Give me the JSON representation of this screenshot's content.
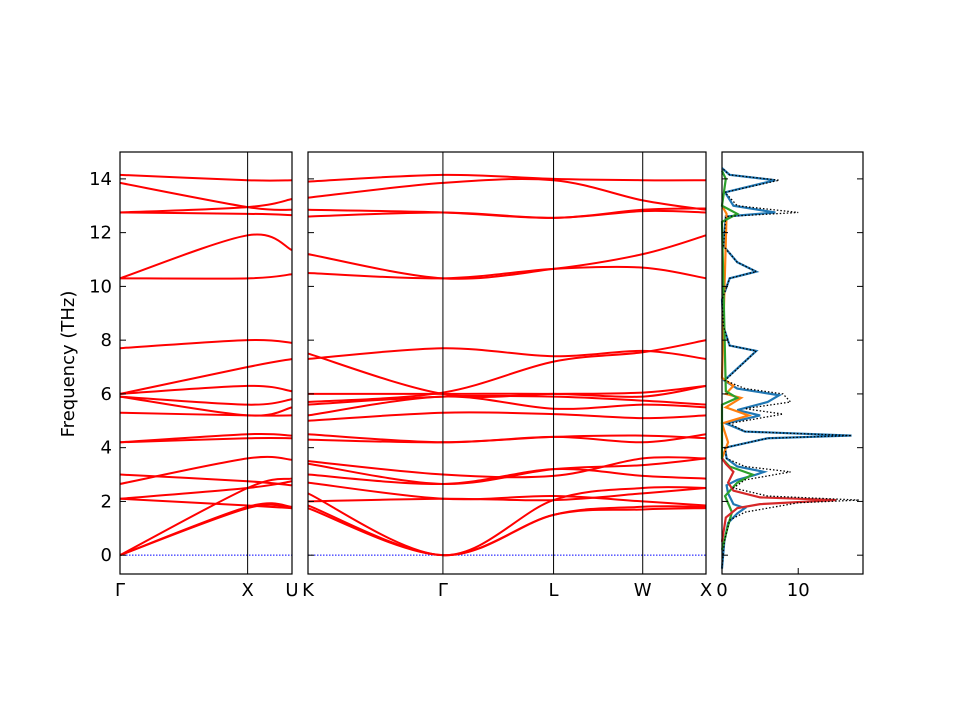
{
  "chart_data": [
    {
      "type": "line",
      "panel": "band-structure-gamma-x-u",
      "ylabel": "Frequency (THz)",
      "ylim": [
        -0.7,
        15.0
      ],
      "yticks": [
        0,
        2,
        4,
        6,
        8,
        10,
        12,
        14
      ],
      "x_ticks": [
        {
          "label": "Γ",
          "pos": 0.0
        },
        {
          "label": "X",
          "pos": 0.742
        },
        {
          "label": "U",
          "pos": 1.0
        }
      ],
      "line_color": "#ff0000",
      "zero_line_color": "#0000ff",
      "series": [
        {
          "x": [
            0,
            0.742,
            1
          ],
          "y": [
            0,
            1.75,
            1.75
          ]
        },
        {
          "x": [
            0,
            0.742,
            1
          ],
          "y": [
            0,
            1.8,
            1.8
          ]
        },
        {
          "x": [
            0,
            0.742,
            1
          ],
          "y": [
            0,
            2.5,
            2.85
          ]
        },
        {
          "x": [
            0,
            0.742,
            1
          ],
          "y": [
            2.1,
            1.85,
            1.75
          ]
        },
        {
          "x": [
            0,
            0.742,
            1
          ],
          "y": [
            2.1,
            2.5,
            2.75
          ]
        },
        {
          "x": [
            0,
            0.742,
            1
          ],
          "y": [
            2.65,
            3.6,
            3.55
          ]
        },
        {
          "x": [
            0,
            0.742,
            1
          ],
          "y": [
            3.0,
            2.75,
            2.6
          ]
        },
        {
          "x": [
            0,
            0.742,
            1
          ],
          "y": [
            4.2,
            4.35,
            4.35
          ]
        },
        {
          "x": [
            0,
            0.742,
            1
          ],
          "y": [
            4.2,
            4.5,
            4.45
          ]
        },
        {
          "x": [
            0,
            0.742,
            1
          ],
          "y": [
            5.3,
            5.2,
            5.2
          ]
        },
        {
          "x": [
            0,
            0.742,
            1
          ],
          "y": [
            5.9,
            5.2,
            5.5
          ]
        },
        {
          "x": [
            0,
            0.742,
            1
          ],
          "y": [
            5.9,
            5.6,
            5.8
          ]
        },
        {
          "x": [
            0,
            0.742,
            1
          ],
          "y": [
            6.0,
            7.0,
            7.3
          ]
        },
        {
          "x": [
            0,
            0.742,
            1
          ],
          "y": [
            6.0,
            6.3,
            6.1
          ]
        },
        {
          "x": [
            0,
            0.742,
            1
          ],
          "y": [
            7.7,
            8.0,
            7.9
          ]
        },
        {
          "x": [
            0,
            0.742,
            1
          ],
          "y": [
            10.3,
            10.3,
            10.45
          ]
        },
        {
          "x": [
            0,
            0.742,
            1
          ],
          "y": [
            10.3,
            11.9,
            11.35
          ]
        },
        {
          "x": [
            0,
            0.742,
            1
          ],
          "y": [
            12.75,
            12.7,
            12.65
          ]
        },
        {
          "x": [
            0,
            0.742,
            1
          ],
          "y": [
            12.75,
            12.95,
            13.25
          ]
        },
        {
          "x": [
            0,
            0.742,
            1
          ],
          "y": [
            13.85,
            12.95,
            12.85
          ]
        },
        {
          "x": [
            0,
            0.742,
            1
          ],
          "y": [
            14.15,
            13.95,
            13.95
          ]
        }
      ]
    },
    {
      "type": "line",
      "panel": "band-structure-k-gamma-l-w-x",
      "ylim": [
        -0.7,
        15.0
      ],
      "x_ticks": [
        {
          "label": "K",
          "pos": 0.0
        },
        {
          "label": "Γ",
          "pos": 0.339
        },
        {
          "label": "L",
          "pos": 0.617
        },
        {
          "label": "W",
          "pos": 0.841
        },
        {
          "label": "X",
          "pos": 1.0
        }
      ],
      "line_color": "#ff0000",
      "zero_line_color": "#0000ff",
      "series": [
        {
          "x": [
            0,
            0.339,
            0.617,
            0.841,
            1
          ],
          "y": [
            1.75,
            0,
            1.5,
            1.7,
            1.75
          ]
        },
        {
          "x": [
            0,
            0.339,
            0.617,
            0.841,
            1
          ],
          "y": [
            1.85,
            0,
            1.5,
            1.8,
            1.8
          ]
        },
        {
          "x": [
            0,
            0.339,
            0.617,
            0.841,
            1
          ],
          "y": [
            2.3,
            0,
            2.05,
            2.5,
            2.5
          ]
        },
        {
          "x": [
            0,
            0.339,
            0.617,
            0.841,
            1
          ],
          "y": [
            2.0,
            2.1,
            2.05,
            2.3,
            2.5
          ]
        },
        {
          "x": [
            0,
            0.339,
            0.617,
            0.841,
            1
          ],
          "y": [
            2.7,
            2.1,
            2.2,
            2.0,
            1.85
          ]
        },
        {
          "x": [
            0,
            0.339,
            0.617,
            0.841,
            1
          ],
          "y": [
            3.0,
            2.65,
            3.2,
            2.95,
            2.85
          ]
        },
        {
          "x": [
            0,
            0.339,
            0.617,
            0.841,
            1
          ],
          "y": [
            3.4,
            2.65,
            3.2,
            3.35,
            3.6
          ]
        },
        {
          "x": [
            0,
            0.339,
            0.617,
            0.841,
            1
          ],
          "y": [
            3.5,
            3.0,
            2.95,
            3.6,
            3.6
          ]
        },
        {
          "x": [
            0,
            0.339,
            0.617,
            0.841,
            1
          ],
          "y": [
            4.3,
            4.2,
            4.4,
            4.45,
            4.35
          ]
        },
        {
          "x": [
            0,
            0.339,
            0.617,
            0.841,
            1
          ],
          "y": [
            4.5,
            4.2,
            4.4,
            4.2,
            4.5
          ]
        },
        {
          "x": [
            0,
            0.339,
            0.617,
            0.841,
            1
          ],
          "y": [
            5.0,
            5.3,
            5.25,
            5.1,
            5.2
          ]
        },
        {
          "x": [
            0,
            0.339,
            0.617,
            0.841,
            1
          ],
          "y": [
            5.2,
            5.9,
            5.45,
            5.6,
            5.5
          ]
        },
        {
          "x": [
            0,
            0.339,
            0.617,
            0.841,
            1
          ],
          "y": [
            5.6,
            5.9,
            5.9,
            5.75,
            5.6
          ]
        },
        {
          "x": [
            0,
            0.339,
            0.617,
            0.841,
            1
          ],
          "y": [
            6.0,
            6.0,
            6.0,
            5.9,
            6.3
          ]
        },
        {
          "x": [
            0,
            0.339,
            0.617,
            0.841,
            1
          ],
          "y": [
            5.7,
            6.05,
            7.2,
            7.55,
            8.0
          ]
        },
        {
          "x": [
            0,
            0.339,
            0.617,
            0.841,
            1
          ],
          "y": [
            7.5,
            6.0,
            6.0,
            6.05,
            6.3
          ]
        },
        {
          "x": [
            0,
            0.339,
            0.617,
            0.841,
            1
          ],
          "y": [
            7.3,
            7.7,
            7.4,
            7.6,
            7.3
          ]
        },
        {
          "x": [
            0,
            0.339,
            0.617,
            0.841,
            1
          ],
          "y": [
            10.5,
            10.3,
            10.65,
            10.7,
            10.3
          ]
        },
        {
          "x": [
            0,
            0.339,
            0.617,
            0.841,
            1
          ],
          "y": [
            11.2,
            10.3,
            10.65,
            11.2,
            11.9
          ]
        },
        {
          "x": [
            0,
            0.339,
            0.617,
            0.841,
            1
          ],
          "y": [
            12.6,
            12.75,
            12.55,
            12.8,
            12.75
          ]
        },
        {
          "x": [
            0,
            0.339,
            0.617,
            0.841,
            1
          ],
          "y": [
            12.85,
            12.75,
            12.55,
            12.85,
            12.9
          ]
        },
        {
          "x": [
            0,
            0.339,
            0.617,
            0.841,
            1
          ],
          "y": [
            13.3,
            13.85,
            13.95,
            13.2,
            12.85
          ]
        },
        {
          "x": [
            0,
            0.339,
            0.617,
            0.841,
            1
          ],
          "y": [
            13.9,
            14.15,
            14.0,
            13.95,
            13.95
          ]
        }
      ]
    },
    {
      "type": "line",
      "panel": "density-of-states",
      "xlim": [
        0,
        18.5
      ],
      "xticks": [
        0,
        10
      ],
      "ylim": [
        -0.7,
        15.0
      ],
      "series": [
        {
          "name": "",
          "color": "#1f77b4",
          "style": "solid",
          "points": [
            [
              0,
              -0.5
            ],
            [
              0.3,
              0.5
            ],
            [
              0.8,
              1.2
            ],
            [
              2,
              1.55
            ],
            [
              3,
              1.75
            ],
            [
              1.5,
              1.9
            ],
            [
              0.8,
              2.3
            ],
            [
              0.6,
              2.6
            ],
            [
              2,
              2.8
            ],
            [
              4.5,
              3.0
            ],
            [
              5.5,
              3.1
            ],
            [
              2,
              3.3
            ],
            [
              0.6,
              3.6
            ],
            [
              0.4,
              4.0
            ],
            [
              6,
              4.35
            ],
            [
              17,
              4.45
            ],
            [
              3,
              4.6
            ],
            [
              0.5,
              4.9
            ],
            [
              5,
              5.2
            ],
            [
              2,
              5.4
            ],
            [
              6,
              5.7
            ],
            [
              7.5,
              5.95
            ],
            [
              2,
              6.2
            ],
            [
              0.3,
              6.5
            ],
            [
              4.5,
              7.6
            ],
            [
              1,
              7.8
            ],
            [
              0.2,
              8.5
            ],
            [
              0,
              9.5
            ],
            [
              1,
              10.3
            ],
            [
              4.5,
              10.55
            ],
            [
              2,
              10.9
            ],
            [
              0.2,
              11.5
            ],
            [
              0.5,
              12.6
            ],
            [
              7,
              12.75
            ],
            [
              1.5,
              13.0
            ],
            [
              0.4,
              13.5
            ],
            [
              7,
              13.95
            ],
            [
              1,
              14.15
            ],
            [
              0,
              14.4
            ]
          ]
        },
        {
          "name": "",
          "color": "#ff7f0e",
          "style": "solid",
          "points": [
            [
              0,
              3.6
            ],
            [
              0.8,
              4.2
            ],
            [
              0,
              4.9
            ],
            [
              3.5,
              5.2
            ],
            [
              0.5,
              5.5
            ],
            [
              2.5,
              5.85
            ],
            [
              0.5,
              6.0
            ],
            [
              1.5,
              6.3
            ],
            [
              0,
              6.6
            ],
            [
              0.6,
              12.7
            ],
            [
              0,
              13.0
            ]
          ]
        },
        {
          "name": "",
          "color": "#2ca02c",
          "style": "solid",
          "points": [
            [
              0,
              0.2
            ],
            [
              0.7,
              1.0
            ],
            [
              1.3,
              1.6
            ],
            [
              0.4,
              2.2
            ],
            [
              2,
              2.7
            ],
            [
              4,
              3.0
            ],
            [
              1,
              3.3
            ],
            [
              0,
              3.6
            ],
            [
              0,
              5.6
            ],
            [
              2,
              5.85
            ],
            [
              0.5,
              6.1
            ],
            [
              0,
              12.4
            ],
            [
              2,
              12.7
            ],
            [
              0,
              13.0
            ],
            [
              0.5,
              14.0
            ],
            [
              0,
              14.3
            ]
          ]
        },
        {
          "name": "",
          "color": "#d62728",
          "style": "solid",
          "points": [
            [
              0,
              0.5
            ],
            [
              0.5,
              1.4
            ],
            [
              2,
              1.75
            ],
            [
              5,
              1.9
            ],
            [
              15,
              2.05
            ],
            [
              5,
              2.15
            ],
            [
              1.5,
              2.4
            ],
            [
              0.8,
              2.7
            ],
            [
              1.5,
              3.1
            ],
            [
              0.5,
              3.4
            ],
            [
              0,
              3.6
            ]
          ]
        },
        {
          "name": "",
          "color": "#000000",
          "style": "dotted",
          "points": [
            [
              0,
              -0.5
            ],
            [
              0.3,
              0.5
            ],
            [
              1,
              1.3
            ],
            [
              3,
              1.6
            ],
            [
              6,
              1.75
            ],
            [
              10,
              1.95
            ],
            [
              18,
              2.05
            ],
            [
              6,
              2.2
            ],
            [
              1.5,
              2.5
            ],
            [
              3,
              2.8
            ],
            [
              7,
              3.0
            ],
            [
              9,
              3.1
            ],
            [
              3,
              3.3
            ],
            [
              0.6,
              3.6
            ],
            [
              0.4,
              4.0
            ],
            [
              6,
              4.35
            ],
            [
              17,
              4.45
            ],
            [
              3,
              4.6
            ],
            [
              1,
              4.9
            ],
            [
              8,
              5.25
            ],
            [
              3,
              5.45
            ],
            [
              9,
              5.7
            ],
            [
              8,
              6.0
            ],
            [
              3,
              6.2
            ],
            [
              0.4,
              6.5
            ],
            [
              4.5,
              7.6
            ],
            [
              1,
              7.8
            ],
            [
              0.2,
              8.5
            ],
            [
              0,
              9.5
            ],
            [
              1,
              10.3
            ],
            [
              4.5,
              10.55
            ],
            [
              2,
              10.9
            ],
            [
              0.2,
              11.5
            ],
            [
              0.5,
              12.6
            ],
            [
              10,
              12.75
            ],
            [
              2,
              13.0
            ],
            [
              0.4,
              13.5
            ],
            [
              7.5,
              13.95
            ],
            [
              1,
              14.15
            ],
            [
              0,
              14.4
            ]
          ]
        }
      ]
    }
  ]
}
